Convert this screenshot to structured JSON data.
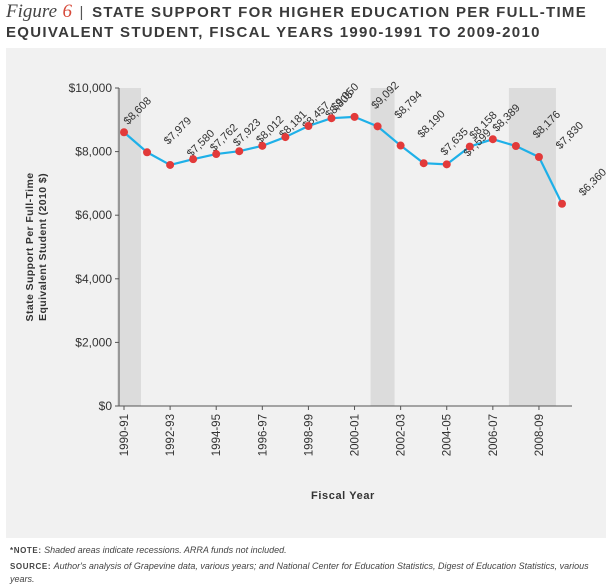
{
  "figure": {
    "label": "Figure",
    "number": "6",
    "separator": "|",
    "title_line1": "STATE SUPPORT FOR HIGHER EDUCATION PER FULL-TIME",
    "title_line2": "EQUIVALENT STUDENT, FISCAL YEARS 1990-1991 TO 2009-2010"
  },
  "notes": {
    "note_key": "*NOTE:",
    "note_text": "Shaded areas indicate recessions. ARRA funds not included.",
    "source_key": "SOURCE:",
    "source_text": "Author's analysis of Grapevine data, various years; and National Center for Education Statistics, Digest of Education Statistics, various years."
  },
  "colors": {
    "line": "#1eb0e8",
    "point": "#e23a3a",
    "recession": "#dcdcdc",
    "panel": "#f1f1f1"
  },
  "chart_data": {
    "type": "line",
    "title": "",
    "xlabel": "Fiscal Year",
    "ylabel": "State Support Per Full-Time Equivalent Student (2010 $)",
    "ylim": [
      0,
      10000
    ],
    "yticks": [
      0,
      2000,
      4000,
      6000,
      8000,
      10000
    ],
    "ytick_labels": [
      "$0",
      "$2,000",
      "$4,000",
      "$6,000",
      "$8,000",
      "$10,000"
    ],
    "categories": [
      "1990-91",
      "1991-92",
      "1992-93",
      "1993-94",
      "1994-95",
      "1995-96",
      "1996-97",
      "1997-98",
      "1998-99",
      "1999-00",
      "2000-01",
      "2001-02",
      "2002-03",
      "2003-04",
      "2004-05",
      "2005-06",
      "2006-07",
      "2007-08",
      "2008-09",
      "2009-10"
    ],
    "xtick_labels_shown": [
      "1990-91",
      "1992-93",
      "1994-95",
      "1996-97",
      "1998-99",
      "2000-01",
      "2002-03",
      "2004-05",
      "2006-07",
      "2008-09"
    ],
    "values": [
      8608,
      7979,
      7580,
      7762,
      7923,
      8012,
      8181,
      8457,
      8805,
      9050,
      9092,
      8794,
      8190,
      7635,
      7599,
      8158,
      8389,
      8176,
      7830,
      6360
    ],
    "data_labels": [
      "$8,608",
      "$7,979",
      "$7,580",
      "$7,762",
      "$7,923",
      "$8,012",
      "$8,181",
      "$8,457",
      "$8,805",
      "$9,050",
      "$9,092",
      "$8,794",
      "$8,190",
      "$7,635",
      "$7,599",
      "$8,158",
      "$8,389",
      "$8,176",
      "$7,830",
      "$6,360"
    ],
    "recessions": [
      [
        "1990-91",
        "1990-91"
      ],
      [
        "2001-02",
        "2001-02"
      ],
      [
        "2007-08",
        "2008-09"
      ]
    ],
    "grid": false,
    "legend": "none"
  }
}
